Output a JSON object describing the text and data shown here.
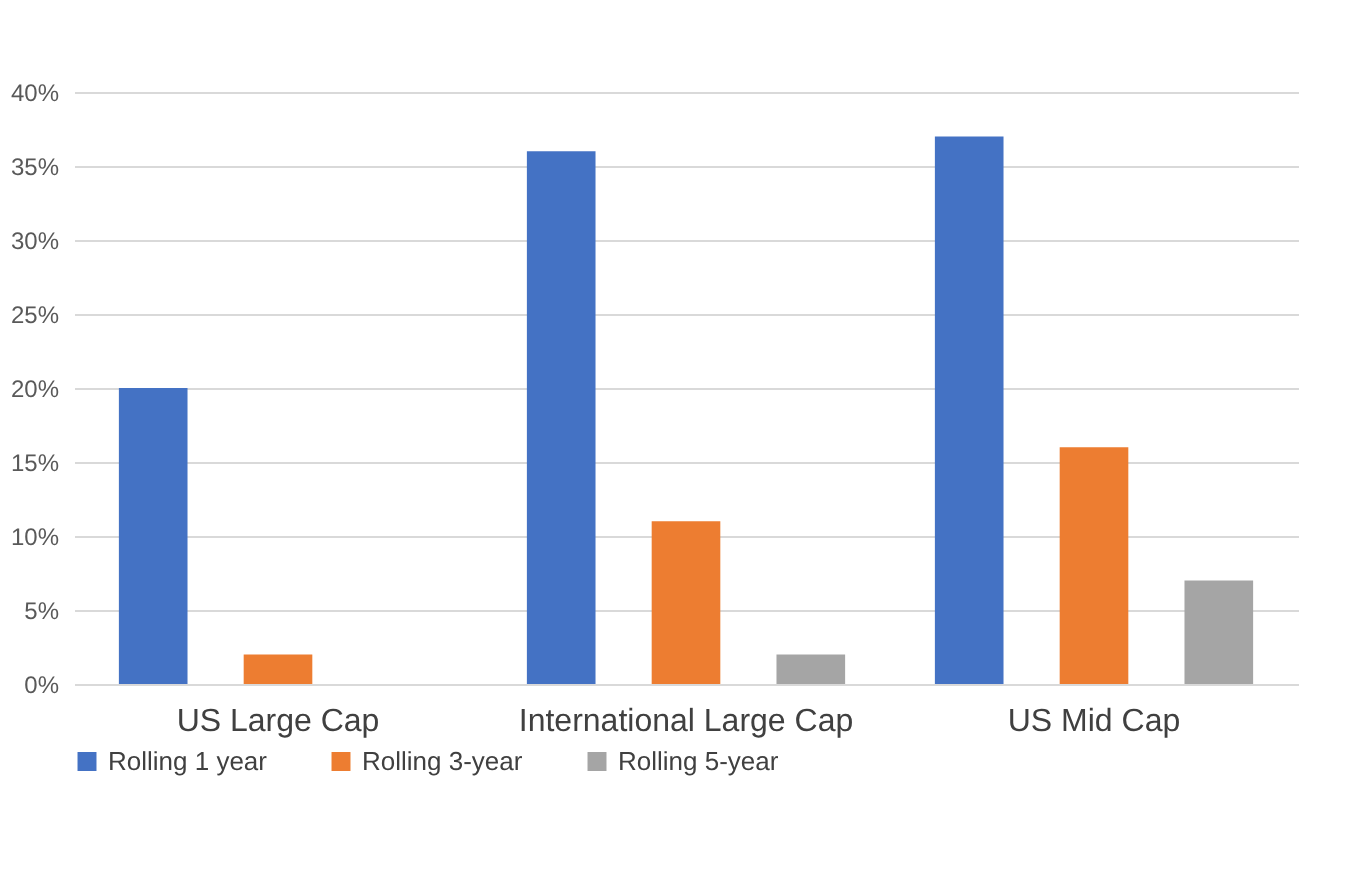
{
  "chart_data": {
    "type": "bar",
    "categories": [
      "US Large Cap",
      "International Large Cap",
      "US Mid Cap"
    ],
    "series": [
      {
        "name": "Rolling 1 year",
        "color": "#4472c4",
        "values": [
          20,
          36,
          37
        ]
      },
      {
        "name": "Rolling 3-year",
        "color": "#ed7d31",
        "values": [
          2,
          11,
          16
        ]
      },
      {
        "name": "Rolling 5-year",
        "color": "#a5a5a5",
        "values": [
          0,
          2,
          7
        ]
      }
    ],
    "ylim": [
      0,
      40
    ],
    "yticks": [
      {
        "value": 0,
        "label": "0%"
      },
      {
        "value": 5,
        "label": "5%"
      },
      {
        "value": 10,
        "label": "10%"
      },
      {
        "value": 15,
        "label": "15%"
      },
      {
        "value": 20,
        "label": "20%"
      },
      {
        "value": 25,
        "label": "25%"
      },
      {
        "value": 30,
        "label": "30%"
      },
      {
        "value": 35,
        "label": "35%"
      },
      {
        "value": 40,
        "label": "40%"
      }
    ],
    "grid": true,
    "legend": "bottom"
  }
}
